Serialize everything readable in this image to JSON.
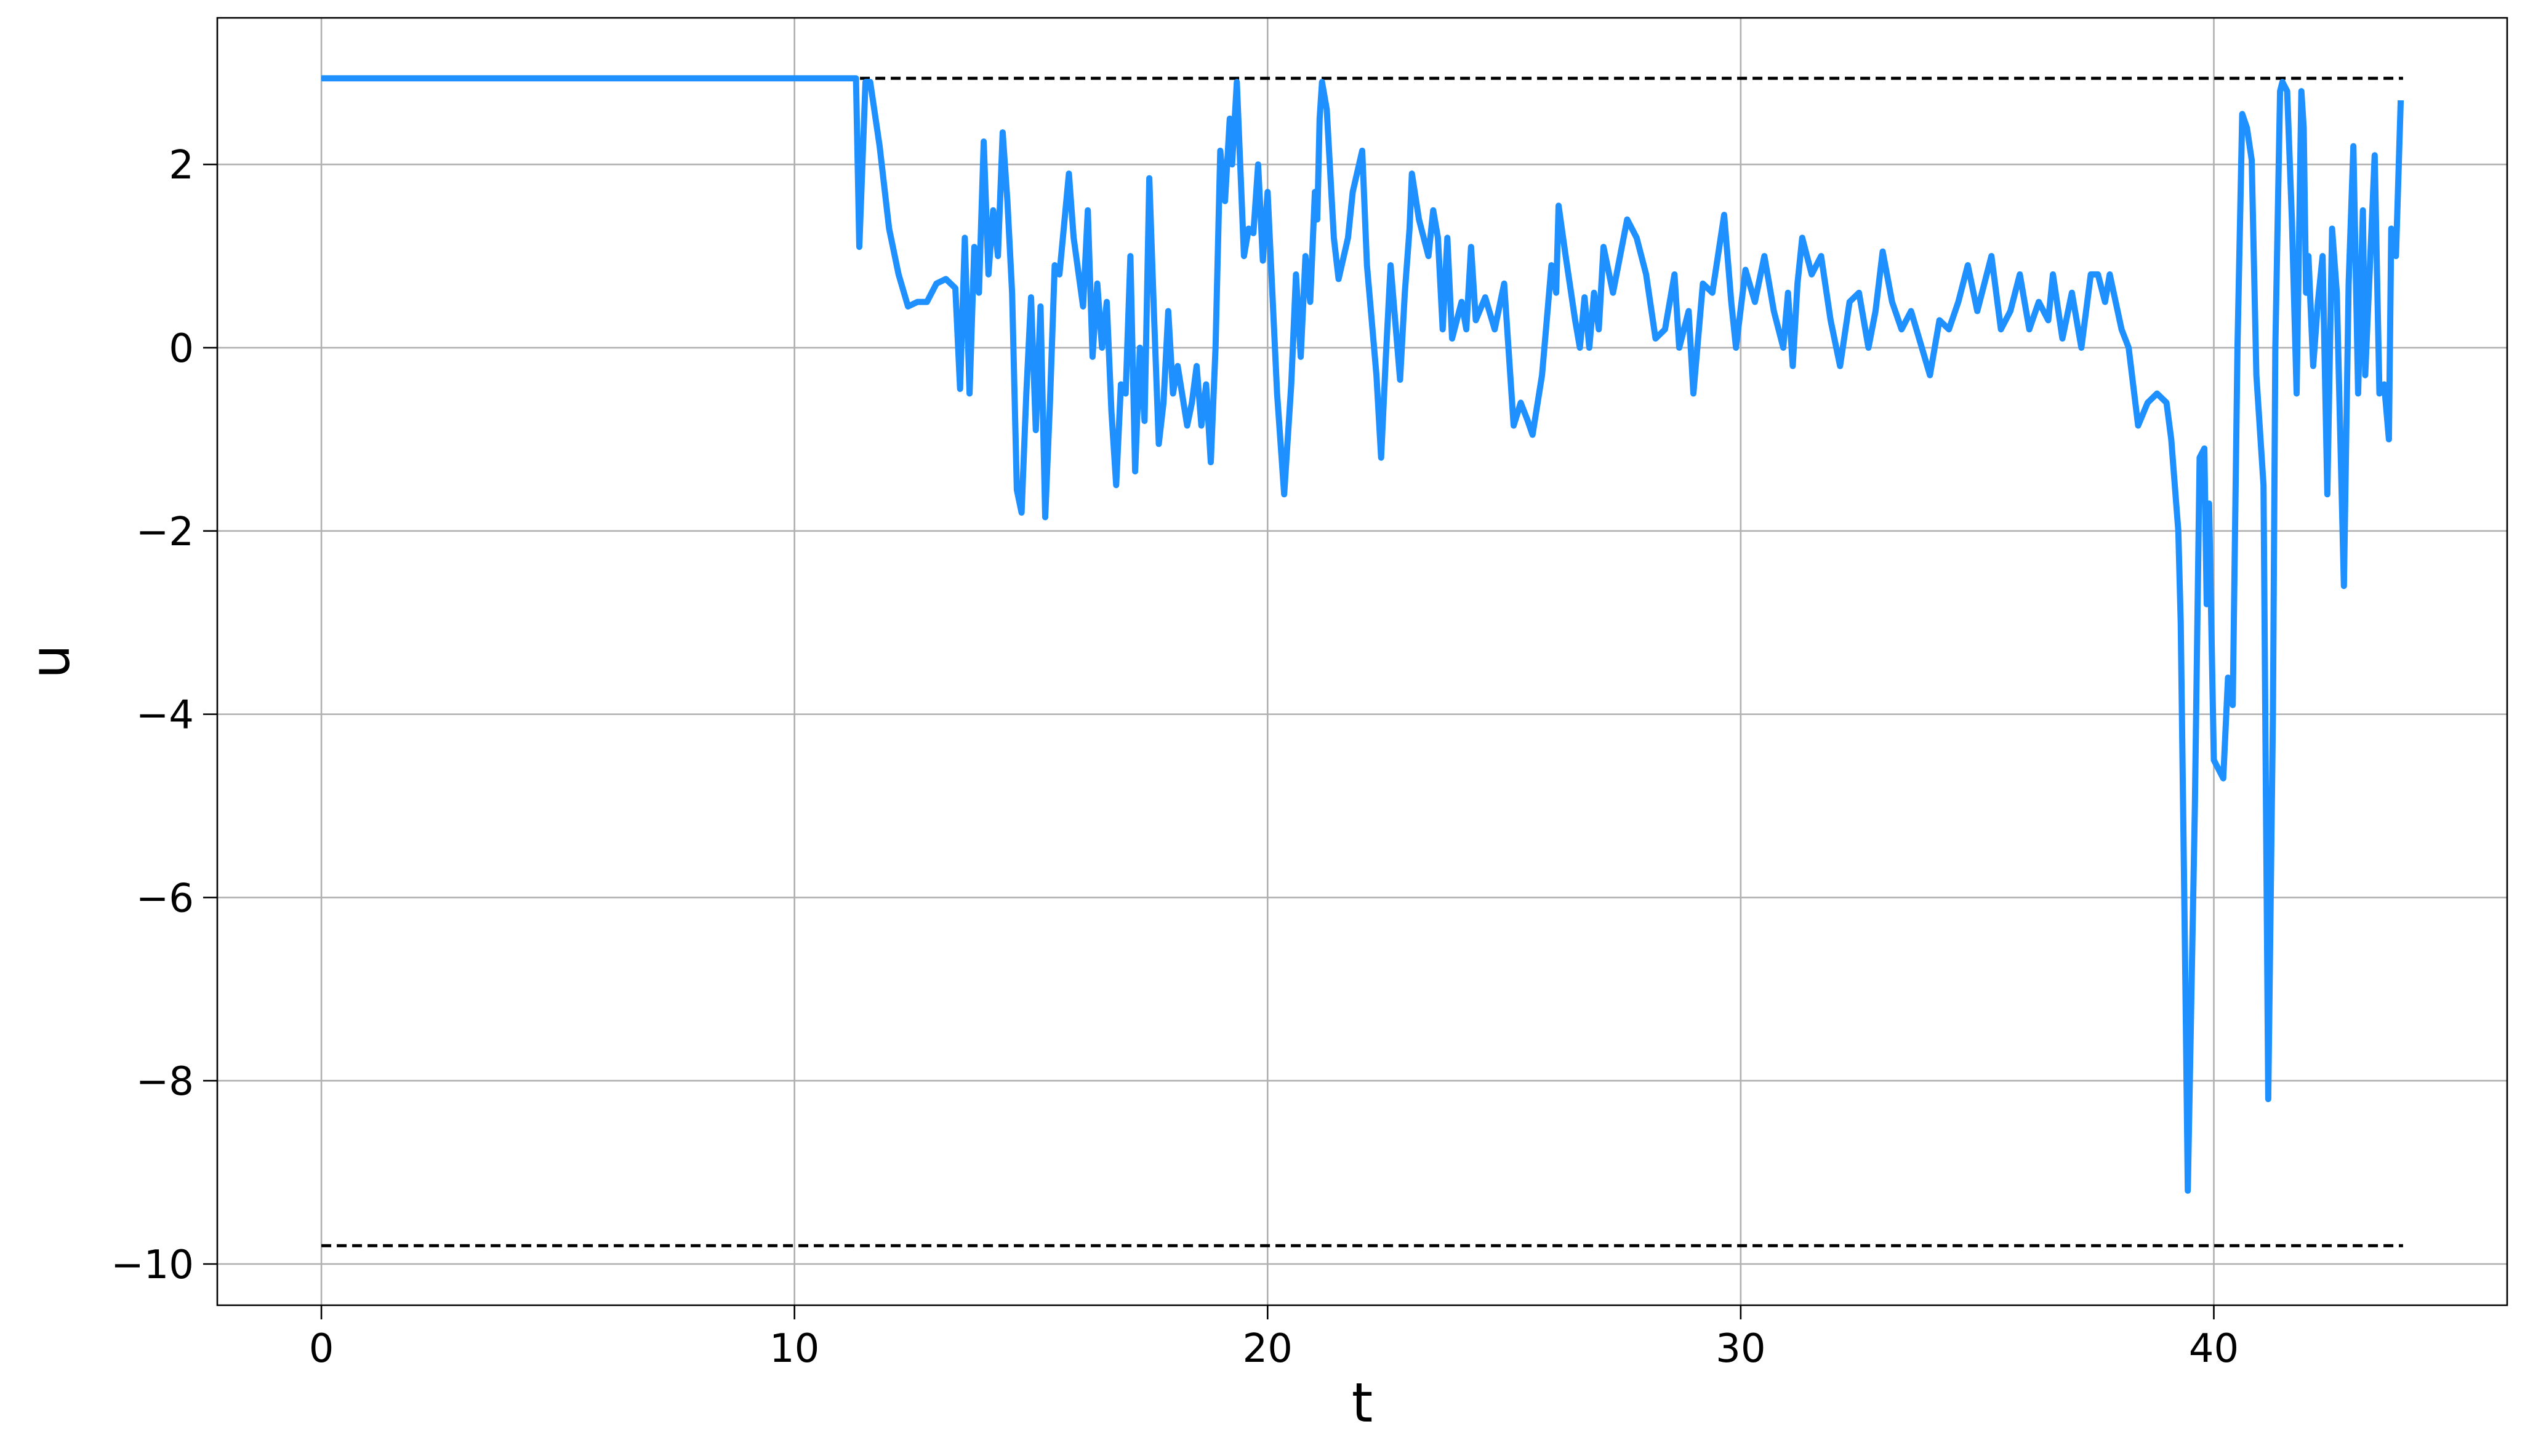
{
  "chart_data": {
    "type": "line",
    "xlabel": "t",
    "ylabel": "u",
    "xlim": [
      -2.2,
      46.2
    ],
    "ylim": [
      -10.45,
      3.6
    ],
    "xticks": [
      0,
      10,
      20,
      30,
      40
    ],
    "yticks": [
      {
        "value": -10,
        "label": "−10"
      },
      {
        "value": -8,
        "label": "−8"
      },
      {
        "value": -6,
        "label": "−6"
      },
      {
        "value": -4,
        "label": "−4"
      },
      {
        "value": -2,
        "label": "−2"
      },
      0,
      2
    ],
    "grid": true,
    "hlines": [
      {
        "y": 2.94,
        "xmin": 0,
        "xmax": 44,
        "color": "#000000",
        "style": "dashed"
      },
      {
        "y": -9.8,
        "xmin": 0,
        "xmax": 44,
        "color": "#000000",
        "style": "dashed"
      }
    ],
    "series": [
      {
        "color": "#1e90ff",
        "x": [
          0,
          11.3,
          11.37,
          11.5,
          11.6,
          11.8,
          12.0,
          12.2,
          12.4,
          12.6,
          12.8,
          13.0,
          13.2,
          13.4,
          13.5,
          13.6,
          13.7,
          13.8,
          13.9,
          14.0,
          14.1,
          14.2,
          14.3,
          14.4,
          14.5,
          14.6,
          14.7,
          14.8,
          14.9,
          15.0,
          15.1,
          15.2,
          15.3,
          15.4,
          15.5,
          15.6,
          15.8,
          15.9,
          16.1,
          16.2,
          16.3,
          16.4,
          16.5,
          16.6,
          16.7,
          16.8,
          16.9,
          17.0,
          17.1,
          17.2,
          17.3,
          17.4,
          17.5,
          17.6,
          17.7,
          17.8,
          17.9,
          18.0,
          18.1,
          18.3,
          18.4,
          18.5,
          18.6,
          18.7,
          18.8,
          18.9,
          19.0,
          19.1,
          19.2,
          19.25,
          19.35,
          19.5,
          19.6,
          19.7,
          19.8,
          19.9,
          20.0,
          20.1,
          20.2,
          20.35,
          20.5,
          20.6,
          20.7,
          20.8,
          20.9,
          21.0,
          21.05,
          21.1,
          21.15,
          21.25,
          21.4,
          21.5,
          21.7,
          21.8,
          22.0,
          22.1,
          22.3,
          22.4,
          22.5,
          22.6,
          22.8,
          22.9,
          23.0,
          23.05,
          23.2,
          23.4,
          23.5,
          23.6,
          23.7,
          23.8,
          23.9,
          24.1,
          24.2,
          24.3,
          24.4,
          24.6,
          24.8,
          25.0,
          25.2,
          25.35,
          25.5,
          25.6,
          25.8,
          25.9,
          26.0,
          26.1,
          26.15,
          26.3,
          26.5,
          26.6,
          26.7,
          26.8,
          26.9,
          27.0,
          27.1,
          27.3,
          27.6,
          27.8,
          28.0,
          28.2,
          28.4,
          28.6,
          28.7,
          28.9,
          29.0,
          29.2,
          29.4,
          29.65,
          29.8,
          29.9,
          30.1,
          30.3,
          30.5,
          30.7,
          30.9,
          31.0,
          31.1,
          31.2,
          31.3,
          31.5,
          31.7,
          31.9,
          32.1,
          32.3,
          32.5,
          32.7,
          32.85,
          33.0,
          33.2,
          33.4,
          33.6,
          34.0,
          34.2,
          34.4,
          34.6,
          34.8,
          35.0,
          35.3,
          35.5,
          35.7,
          35.9,
          36.1,
          36.3,
          36.5,
          36.6,
          36.8,
          37.0,
          37.2,
          37.4,
          37.55,
          37.7,
          37.8,
          38.05,
          38.2,
          38.4,
          38.6,
          38.8,
          39.0,
          39.1,
          39.25,
          39.3,
          39.4,
          39.45,
          39.6,
          39.7,
          39.8,
          39.85,
          39.9,
          40.0,
          40.2,
          40.3,
          40.4,
          40.5,
          40.6,
          40.7,
          40.8,
          40.9,
          41.05,
          41.15,
          41.25,
          41.3,
          41.4,
          41.45,
          41.55,
          41.65,
          41.75,
          41.85,
          41.9,
          41.95,
          42.0,
          42.1,
          42.2,
          42.3,
          42.4,
          42.5,
          42.6,
          42.75,
          42.85,
          42.95,
          43.05,
          43.15,
          43.2,
          43.4,
          43.5,
          43.6,
          43.7,
          43.75,
          43.85,
          43.95
        ],
        "values": [
          2.94,
          2.94,
          1.1,
          2.9,
          2.9,
          2.2,
          1.3,
          0.8,
          0.45,
          0.5,
          0.5,
          0.7,
          0.75,
          0.65,
          -0.45,
          1.2,
          -0.5,
          1.1,
          0.6,
          2.25,
          0.8,
          1.5,
          1.0,
          2.35,
          1.6,
          0.6,
          -1.55,
          -1.8,
          -0.5,
          0.55,
          -0.9,
          0.45,
          -1.85,
          -0.6,
          0.9,
          0.8,
          1.9,
          1.2,
          0.45,
          1.5,
          -0.1,
          0.7,
          0.0,
          0.5,
          -0.7,
          -1.5,
          -0.4,
          -0.5,
          1.0,
          -1.35,
          0.0,
          -0.8,
          1.85,
          0.35,
          -1.05,
          -0.6,
          0.4,
          -0.5,
          -0.2,
          -0.85,
          -0.6,
          -0.2,
          -0.85,
          -0.4,
          -1.25,
          0.0,
          2.15,
          1.6,
          2.5,
          2.0,
          2.9,
          1.0,
          1.3,
          1.25,
          2.0,
          0.95,
          1.7,
          0.6,
          -0.5,
          -1.6,
          -0.4,
          0.8,
          -0.1,
          1.0,
          0.5,
          1.7,
          1.4,
          2.5,
          2.9,
          2.6,
          1.2,
          0.75,
          1.2,
          1.7,
          2.15,
          0.9,
          -0.3,
          -1.2,
          -0.1,
          0.9,
          -0.35,
          0.6,
          1.3,
          1.9,
          1.4,
          1.0,
          1.5,
          1.2,
          0.2,
          1.2,
          0.1,
          0.5,
          0.2,
          1.1,
          0.3,
          0.55,
          0.2,
          0.7,
          -0.85,
          -0.6,
          -0.8,
          -0.95,
          -0.3,
          0.3,
          0.9,
          0.6,
          1.55,
          1.0,
          0.3,
          0.0,
          0.55,
          0.0,
          0.6,
          0.2,
          1.1,
          0.6,
          1.4,
          1.2,
          0.8,
          0.1,
          0.2,
          0.8,
          0.0,
          0.4,
          -0.5,
          0.7,
          0.6,
          1.45,
          0.5,
          0.0,
          0.85,
          0.5,
          1.0,
          0.4,
          0.0,
          0.6,
          -0.2,
          0.7,
          1.2,
          0.8,
          1.0,
          0.3,
          -0.2,
          0.5,
          0.6,
          0.0,
          0.4,
          1.05,
          0.5,
          0.2,
          0.4,
          -0.3,
          0.3,
          0.2,
          0.5,
          0.9,
          0.4,
          1.0,
          0.2,
          0.4,
          0.8,
          0.2,
          0.5,
          0.3,
          0.8,
          0.1,
          0.6,
          0.0,
          0.8,
          0.8,
          0.5,
          0.8,
          0.2,
          0.0,
          -0.85,
          -0.6,
          -0.5,
          -0.6,
          -1.0,
          -2.0,
          -3.0,
          -7.0,
          -9.2,
          -5.0,
          -1.2,
          -1.1,
          -2.8,
          -1.7,
          -4.5,
          -4.7,
          -3.6,
          -3.9,
          0.0,
          2.55,
          2.4,
          2.05,
          -0.3,
          -1.5,
          -8.2,
          -4.0,
          0.0,
          2.8,
          2.9,
          2.8,
          1.4,
          -0.5,
          2.8,
          2.4,
          0.6,
          1.0,
          -0.2,
          0.5,
          1.0,
          -1.6,
          1.3,
          0.6,
          -2.6,
          0.7,
          2.2,
          -0.5,
          1.5,
          -0.3,
          2.1,
          -0.5,
          -0.4,
          -1.0,
          1.3,
          1.0,
          2.7
        ]
      }
    ]
  }
}
